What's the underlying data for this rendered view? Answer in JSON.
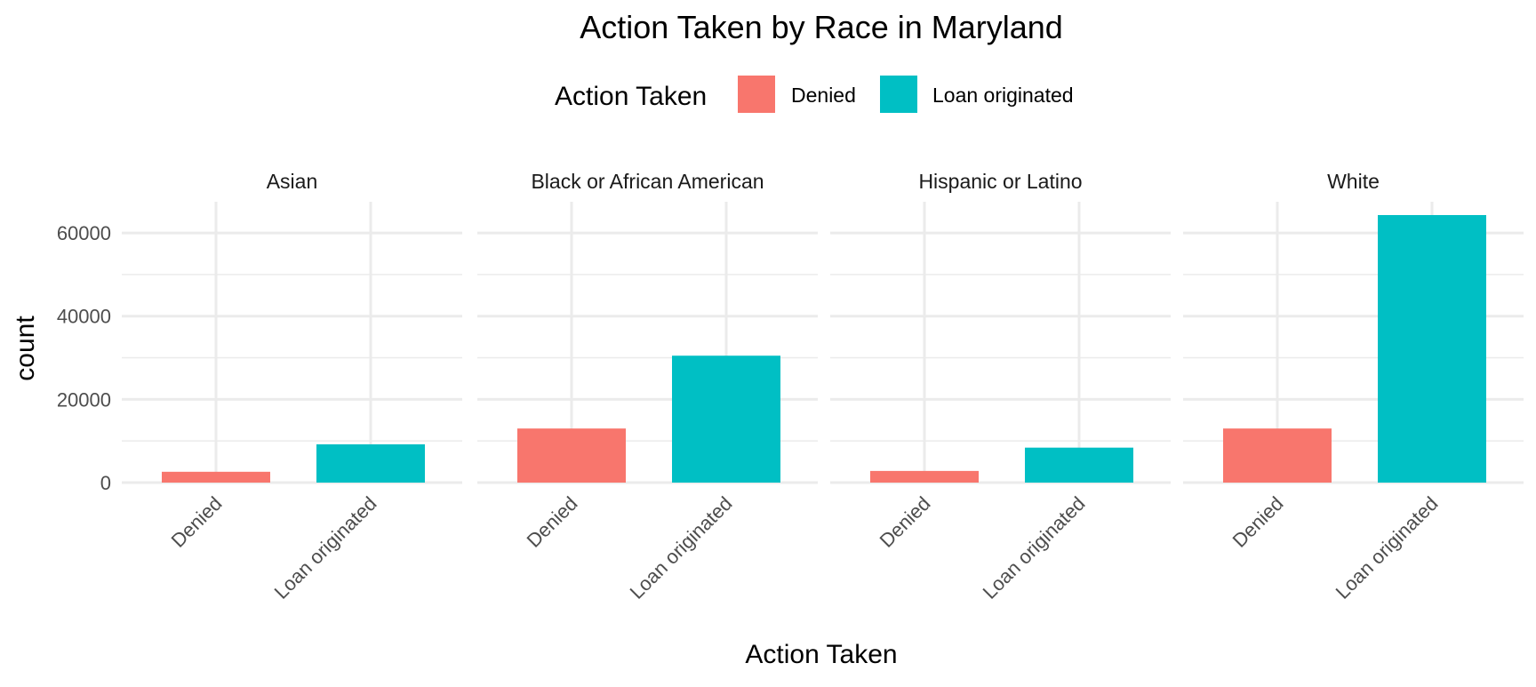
{
  "chart_data": {
    "type": "bar",
    "title": "Action Taken by Race in Maryland",
    "xlabel": "Action Taken",
    "ylabel": "count",
    "ylim": [
      0,
      67500
    ],
    "yticks": [
      0,
      20000,
      40000,
      60000
    ],
    "grid": true,
    "legend": {
      "title": "Action Taken",
      "placement": "top",
      "entries": [
        {
          "label": "Denied",
          "color": "#F8766D"
        },
        {
          "label": "Loan originated",
          "color": "#00BFC4"
        }
      ]
    },
    "categories": [
      "Denied",
      "Loan originated"
    ],
    "facets": [
      {
        "name": "Asian",
        "values": [
          2600,
          9200
        ]
      },
      {
        "name": "Black or African American",
        "values": [
          13000,
          30500
        ]
      },
      {
        "name": "Hispanic or Latino",
        "values": [
          2800,
          8400
        ]
      },
      {
        "name": "White",
        "values": [
          13000,
          64300
        ]
      }
    ],
    "colors": {
      "bar_fill": [
        "#F8766D",
        "#00BFC4"
      ],
      "grid": "#EBEBEB",
      "text": "#1a1a1a",
      "tick_text": "#4d4d4d"
    }
  }
}
